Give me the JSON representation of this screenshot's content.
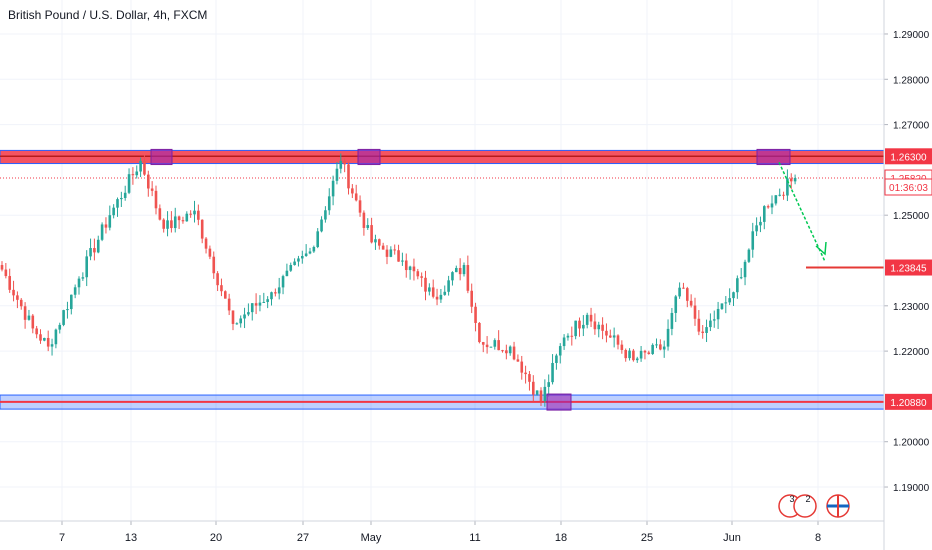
{
  "header": {
    "title": "British Pound / U.S. Dollar, 4h, FXCM"
  },
  "colors": {
    "up": "#26a69a",
    "down": "#ef5350",
    "resistance": "#f23645",
    "support_fill": "#2962ff",
    "touch_marker": "#9c27b0",
    "projection": "#00c853",
    "grid": "#f0f3fa",
    "axis_text": "#131722"
  },
  "chart_data": {
    "type": "candlestick",
    "title": "British Pound / U.S. Dollar, 4h, FXCM",
    "xlabel": "",
    "ylabel": "",
    "ylim": [
      1.1825,
      1.2975
    ],
    "x_ticks": [
      "7",
      "13",
      "20",
      "27",
      "May",
      "11",
      "18",
      "25",
      "Jun",
      "8"
    ],
    "y_ticks": [
      "1.29000",
      "1.28000",
      "1.27000",
      "1.25000",
      "1.23000",
      "1.22000",
      "1.20000",
      "1.19000"
    ],
    "price_labels": [
      {
        "text": "1.26300",
        "style": "resistance"
      },
      {
        "text": "1.25820",
        "style": "current"
      },
      {
        "text": "01:36:03",
        "style": "countdown"
      },
      {
        "text": "1.23845",
        "style": "target"
      },
      {
        "text": "1.20880",
        "style": "support"
      }
    ],
    "levels": {
      "resistance": 1.263,
      "resistance_zone": [
        1.2614,
        1.2643
      ],
      "support": 1.2088,
      "support_zone": [
        1.2072,
        1.2103
      ],
      "current": 1.2582,
      "target": 1.23845
    },
    "anchors": [
      {
        "bar": 0,
        "price": 1.238
      },
      {
        "bar": 8,
        "price": 1.225
      },
      {
        "bar": 12,
        "price": 1.221
      },
      {
        "bar": 20,
        "price": 1.236
      },
      {
        "bar": 28,
        "price": 1.25
      },
      {
        "bar": 36,
        "price": 1.262
      },
      {
        "bar": 42,
        "price": 1.247
      },
      {
        "bar": 50,
        "price": 1.251
      },
      {
        "bar": 60,
        "price": 1.226
      },
      {
        "bar": 70,
        "price": 1.233
      },
      {
        "bar": 80,
        "price": 1.242
      },
      {
        "bar": 88,
        "price": 1.262
      },
      {
        "bar": 96,
        "price": 1.244
      },
      {
        "bar": 104,
        "price": 1.24
      },
      {
        "bar": 112,
        "price": 1.232
      },
      {
        "bar": 120,
        "price": 1.239
      },
      {
        "bar": 124,
        "price": 1.222
      },
      {
        "bar": 132,
        "price": 1.221
      },
      {
        "bar": 140,
        "price": 1.209
      },
      {
        "bar": 146,
        "price": 1.223
      },
      {
        "bar": 152,
        "price": 1.228
      },
      {
        "bar": 158,
        "price": 1.223
      },
      {
        "bar": 164,
        "price": 1.218
      },
      {
        "bar": 172,
        "price": 1.221
      },
      {
        "bar": 176,
        "price": 1.234
      },
      {
        "bar": 182,
        "price": 1.224
      },
      {
        "bar": 190,
        "price": 1.233
      },
      {
        "bar": 198,
        "price": 1.252
      },
      {
        "bar": 206,
        "price": 1.2582
      }
    ],
    "bars_total": 207,
    "projection": {
      "from_price": 1.263,
      "to_price": 1.23845
    }
  },
  "footer": {
    "badge_count_1": "3",
    "badge_count_2": "2"
  }
}
